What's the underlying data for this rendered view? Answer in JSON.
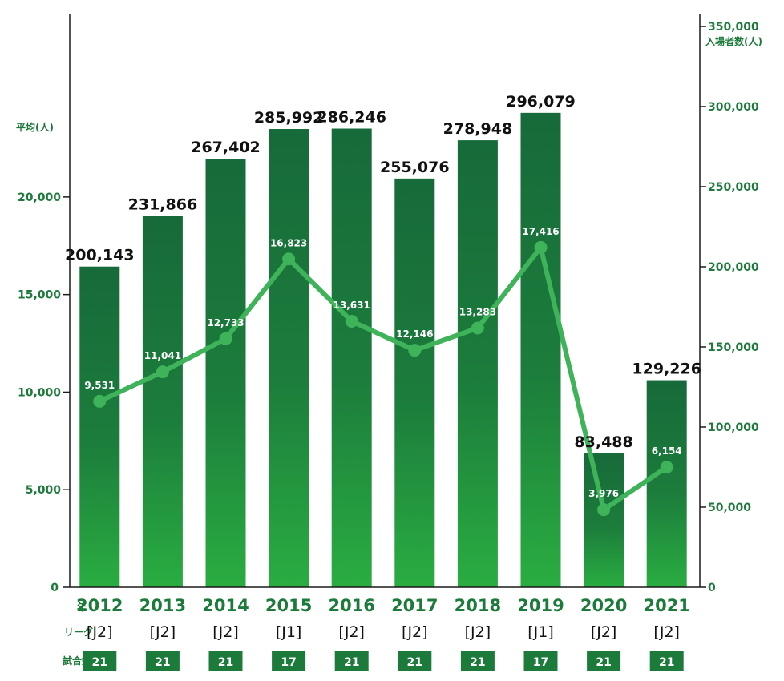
{
  "chart_data": {
    "type": "bar+line",
    "categories": [
      "2012",
      "2013",
      "2014",
      "2015",
      "2016",
      "2017",
      "2018",
      "2019",
      "2020",
      "2021"
    ],
    "left_axis": {
      "label": "平均(人)",
      "ticks": [
        "0",
        "5,000",
        "10,000",
        "15,000",
        "20,000"
      ],
      "tick_values": [
        0,
        5000,
        10000,
        15000,
        20000
      ],
      "range": [
        0,
        22500
      ]
    },
    "right_axis": {
      "label": "入場者数(人)",
      "ticks": [
        "0",
        "50,000",
        "100,000",
        "150,000",
        "200,000",
        "250,000",
        "300,000",
        "350,000"
      ],
      "tick_values": [
        0,
        50000,
        100000,
        150000,
        200000,
        250000,
        300000,
        350000
      ],
      "range": [
        0,
        350000
      ]
    },
    "bar_series": {
      "axis": "right",
      "color": "#1b7a3b",
      "values": [
        200143,
        231866,
        267402,
        285992,
        286246,
        255076,
        278948,
        296079,
        83488,
        129226
      ],
      "labels": [
        "200,143",
        "231,866",
        "267,402",
        "285,992",
        "286,246",
        "255,076",
        "278,948",
        "296,079",
        "83,488",
        "129,226"
      ]
    },
    "line_series": {
      "axis": "left",
      "color": "#3fb35a",
      "values": [
        9531,
        11041,
        12733,
        16823,
        13631,
        12146,
        13283,
        17416,
        3976,
        6154
      ],
      "labels": [
        "9,531",
        "11,041",
        "12,733",
        "16,823",
        "13,631",
        "12,146",
        "13,283",
        "17,416",
        "3,976",
        "6,154"
      ]
    },
    "row_labels": {
      "year": "年",
      "league": "リーグ",
      "games": "試合数"
    },
    "league": [
      "[J2]",
      "[J2]",
      "[J2]",
      "[J1]",
      "[J2]",
      "[J2]",
      "[J2]",
      "[J1]",
      "[J2]",
      "[J2]"
    ],
    "games": [
      "21",
      "21",
      "21",
      "17",
      "21",
      "21",
      "21",
      "17",
      "21",
      "21"
    ]
  }
}
